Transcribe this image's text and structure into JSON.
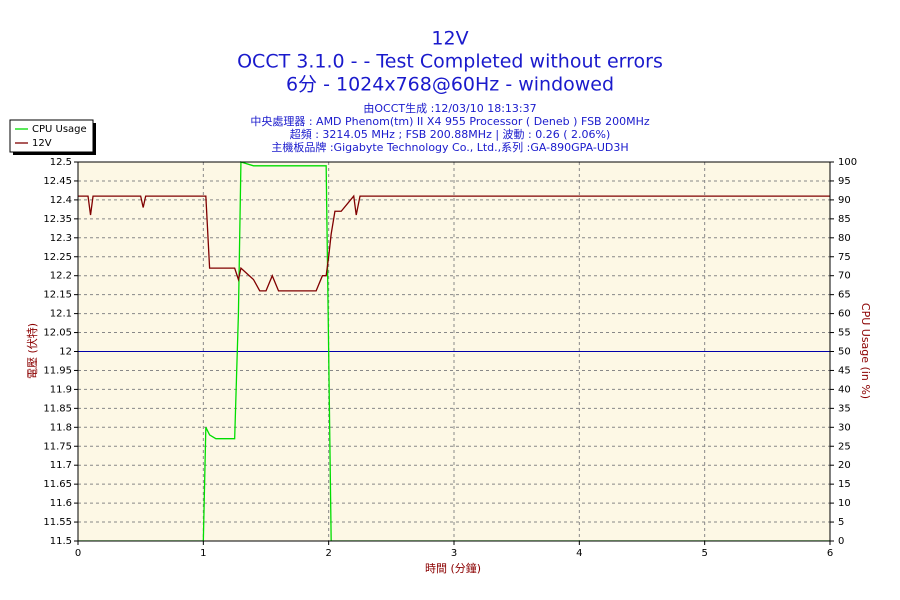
{
  "chart_data": {
    "type": "line",
    "title": "12V",
    "subtitle": [
      "OCCT 3.1.0 -  - Test Completed without errors",
      "6分 - 1024x768@60Hz - windowed"
    ],
    "info": [
      "由OCCT生成 :12/03/10 18:13:37",
      "中央處理器 : AMD Phenom(tm) II X4 955 Processor ( Deneb ) FSB 200MHz",
      "超頻 : 3214.05 MHz ; FSB 200.88MHz | 波動 : 0.26 ( 2.06%)",
      "主機板品牌 :Gigabyte Technology Co., Ltd.,系列 :GA-890GPA-UD3H"
    ],
    "xlabel": "時間 (分鐘)",
    "ylabel": "電壓 (伏特)",
    "y2label": "CPU Usage (in %)",
    "x": [
      0,
      0.08,
      0.1,
      0.12,
      0.5,
      0.52,
      0.54,
      1.0,
      1.02,
      1.05,
      1.1,
      1.25,
      1.28,
      1.3,
      1.4,
      1.45,
      1.5,
      1.55,
      1.6,
      1.65,
      1.9,
      1.95,
      1.98,
      2.0,
      2.02,
      2.05,
      2.1,
      2.15,
      2.2,
      2.22,
      2.25,
      2.3,
      3,
      4,
      5,
      6
    ],
    "series": [
      {
        "name": "CPU Usage",
        "color": "#00dd00",
        "axis": "y2",
        "values": [
          0,
          0,
          0,
          0,
          0,
          0,
          0,
          0,
          30,
          28,
          27,
          27,
          60,
          100,
          99,
          99,
          99,
          99,
          99,
          99,
          99,
          99,
          99,
          50,
          0,
          0,
          0,
          0,
          0,
          0,
          0,
          0,
          0,
          0,
          0,
          0
        ]
      },
      {
        "name": "12V",
        "color": "#800000",
        "values": [
          12.41,
          12.41,
          12.36,
          12.41,
          12.41,
          12.38,
          12.41,
          12.41,
          12.41,
          12.22,
          12.22,
          12.22,
          12.19,
          12.22,
          12.19,
          12.16,
          12.16,
          12.2,
          12.16,
          12.16,
          12.16,
          12.2,
          12.2,
          12.25,
          12.31,
          12.37,
          12.37,
          12.39,
          12.41,
          12.36,
          12.41,
          12.41,
          12.41,
          12.41,
          12.41,
          12.41
        ]
      }
    ],
    "reference_line": {
      "value": 12,
      "color": "#0000aa"
    },
    "xlim": [
      0,
      6
    ],
    "xticks": [
      0,
      1,
      2,
      3,
      4,
      5,
      6
    ],
    "ylim": [
      11.5,
      12.5
    ],
    "yticks": [
      11.5,
      11.55,
      11.6,
      11.65,
      11.7,
      11.75,
      11.8,
      11.85,
      11.9,
      11.95,
      12,
      12.05,
      12.1,
      12.15,
      12.2,
      12.25,
      12.3,
      12.35,
      12.4,
      12.45,
      12.5
    ],
    "y2lim": [
      0,
      100
    ],
    "y2ticks": [
      0,
      5,
      10,
      15,
      20,
      25,
      30,
      35,
      40,
      45,
      50,
      55,
      60,
      65,
      70,
      75,
      80,
      85,
      90,
      95,
      100
    ],
    "grid": true,
    "legend": "top-left"
  }
}
